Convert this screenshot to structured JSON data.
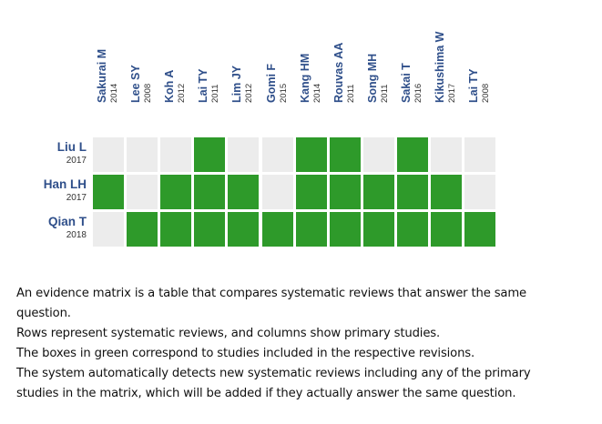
{
  "colors": {
    "included": "#2e9a2a",
    "excluded": "#ececec",
    "author_text": "#2f4f8a",
    "year_text": "#333333"
  },
  "columns": [
    {
      "author": "Sakurai M",
      "year": "2014"
    },
    {
      "author": "Lee SY",
      "year": "2008"
    },
    {
      "author": "Koh A",
      "year": "2012"
    },
    {
      "author": "Lai TY",
      "year": "2011"
    },
    {
      "author": "Lim JY",
      "year": "2012"
    },
    {
      "author": "Gomi F",
      "year": "2015"
    },
    {
      "author": "Kang HM",
      "year": "2014"
    },
    {
      "author": "Rouvas AA",
      "year": "2011"
    },
    {
      "author": "Song MH",
      "year": "2011"
    },
    {
      "author": "Sakai T",
      "year": "2016"
    },
    {
      "author": "Kikushima W",
      "year": "2017"
    },
    {
      "author": "Lai TY",
      "year": "2008"
    }
  ],
  "rows": [
    {
      "author": "Liu L",
      "year": "2017",
      "cells": [
        0,
        0,
        0,
        1,
        0,
        0,
        1,
        1,
        0,
        1,
        0,
        0
      ]
    },
    {
      "author": "Han LH",
      "year": "2017",
      "cells": [
        1,
        0,
        1,
        1,
        1,
        0,
        1,
        1,
        1,
        1,
        1,
        0
      ]
    },
    {
      "author": "Qian T",
      "year": "2018",
      "cells": [
        0,
        1,
        1,
        1,
        1,
        1,
        1,
        1,
        1,
        1,
        1,
        1
      ]
    }
  ],
  "caption": [
    "An evidence matrix is a table that compares systematic reviews that answer the same",
    "question.",
    "Rows represent systematic reviews, and columns show primary studies.",
    "The boxes in green correspond to studies included in the respective revisions.",
    "The system automatically detects new systematic reviews including any of the primary",
    "studies in the matrix, which will be added if they actually answer the same question."
  ]
}
